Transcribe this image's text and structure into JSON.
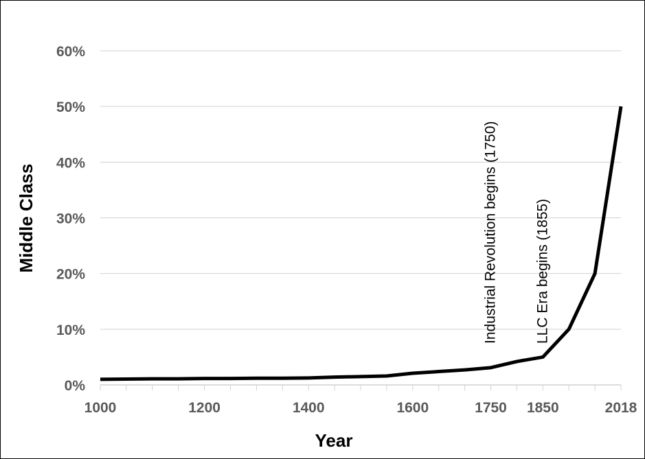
{
  "chart_data": {
    "type": "line",
    "title": "",
    "xlabel": "Year",
    "ylabel": "Middle Class",
    "ylim": [
      0,
      60
    ],
    "y_ticks": [
      "0%",
      "10%",
      "20%",
      "30%",
      "40%",
      "50%",
      "60%"
    ],
    "y_tick_values": [
      0,
      10,
      20,
      30,
      40,
      50,
      60
    ],
    "grid": true,
    "categories": [
      "1000",
      "1050",
      "1100",
      "1150",
      "1200",
      "1250",
      "1300",
      "1350",
      "1400",
      "1450",
      "1500",
      "1550",
      "1600",
      "1650",
      "1700",
      "1750",
      "1800",
      "1850",
      "1900",
      "1950",
      "2018"
    ],
    "x_tick_labels": [
      "1000",
      "1200",
      "1400",
      "1600",
      "1750",
      "1850",
      "2018"
    ],
    "series": [
      {
        "name": "Middle Class",
        "color": "#000000",
        "values": [
          1.0,
          1.05,
          1.1,
          1.1,
          1.15,
          1.15,
          1.2,
          1.2,
          1.25,
          1.4,
          1.5,
          1.6,
          2.1,
          2.4,
          2.7,
          3.1,
          4.2,
          5,
          10,
          20,
          50
        ]
      }
    ],
    "annotations": [
      {
        "category": "1750",
        "text": "Industrial Revolution begins (1750)"
      },
      {
        "category": "1850",
        "text": "LLC Era begins (1855)"
      }
    ]
  }
}
